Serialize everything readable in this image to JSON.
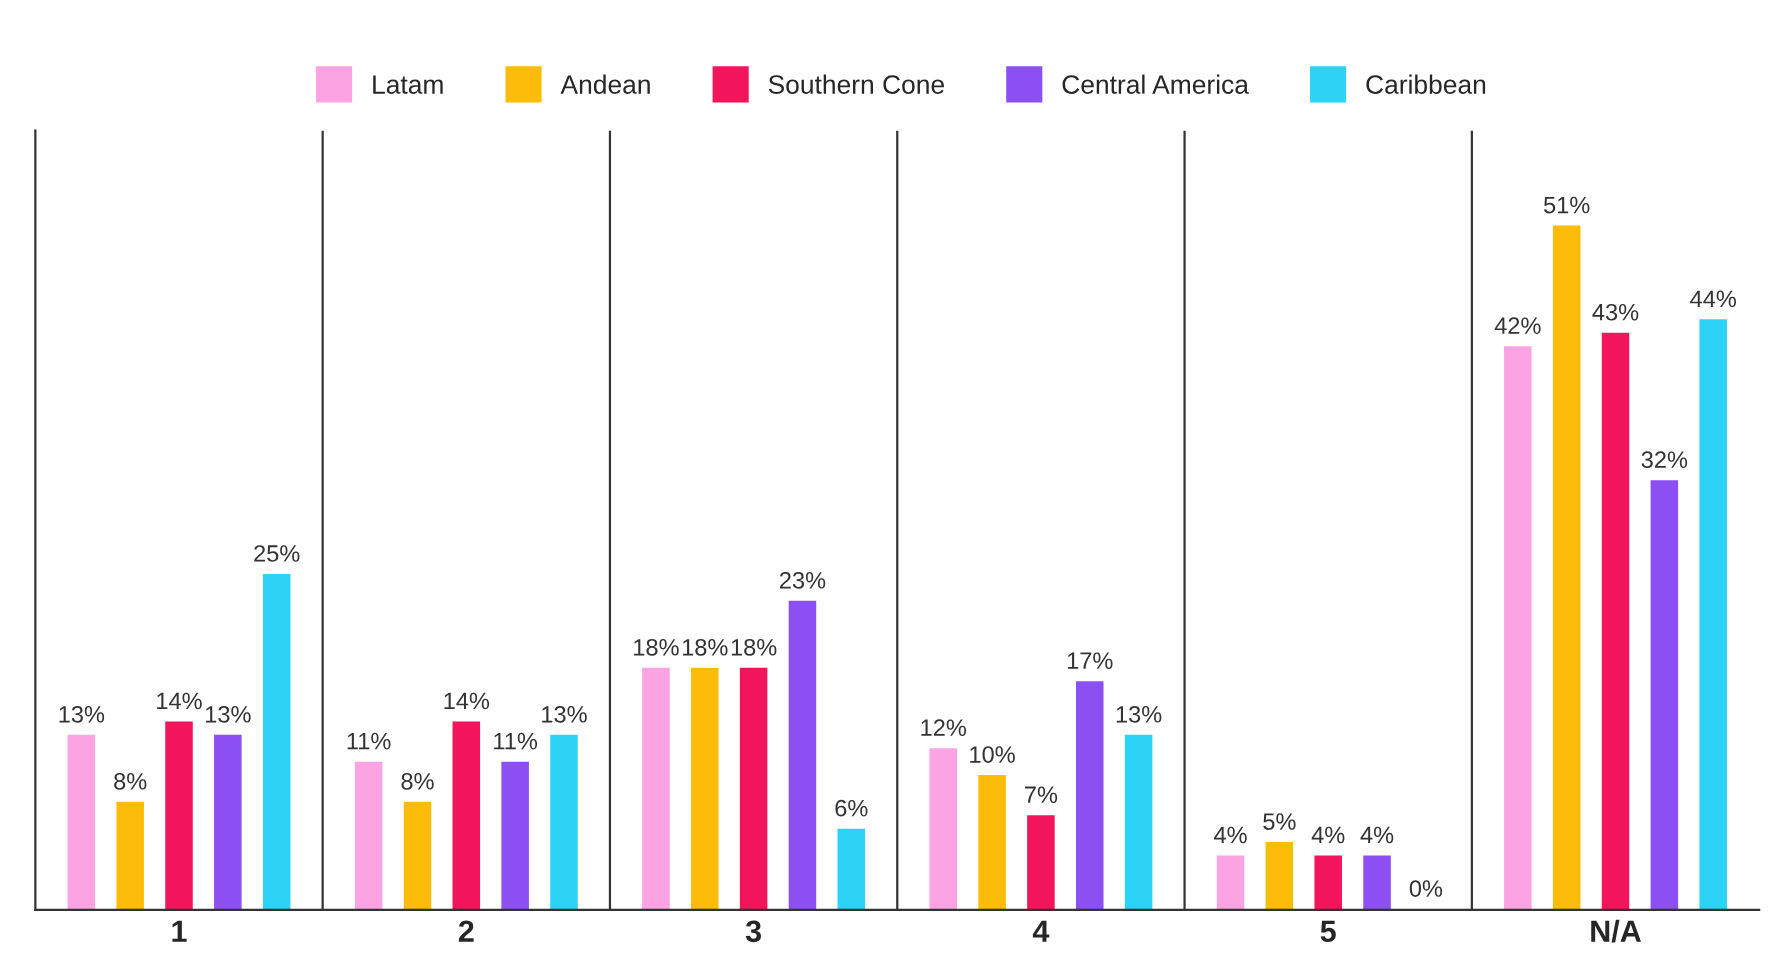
{
  "chart_data": {
    "type": "bar",
    "categories": [
      "1",
      "2",
      "3",
      "4",
      "5",
      "N/A"
    ],
    "series": [
      {
        "name": "Latam",
        "color": "#fba3e3",
        "values": [
          13,
          11,
          18,
          12,
          4,
          42
        ],
        "value_labels": [
          "13%",
          "11%",
          "18%",
          "12%",
          "4%",
          "42%"
        ]
      },
      {
        "name": "Andean",
        "color": "#fdbb0a",
        "values": [
          8,
          8,
          18,
          10,
          5,
          51
        ],
        "value_labels": [
          "8%",
          "8%",
          "18%",
          "10%",
          "5%",
          "51%"
        ]
      },
      {
        "name": "Southern Cone",
        "color": "#f2155c",
        "values": [
          14,
          14,
          18,
          7,
          4,
          43
        ],
        "value_labels": [
          "14%",
          "14%",
          "18%",
          "7%",
          "4%",
          "43%"
        ]
      },
      {
        "name": "Central America",
        "color": "#8c4ff2",
        "values": [
          13,
          11,
          23,
          17,
          4,
          32
        ],
        "value_labels": [
          "13%",
          "11%",
          "23%",
          "17%",
          "4%",
          "32%"
        ]
      },
      {
        "name": "Caribbean",
        "color": "#2dd2f7",
        "values": [
          25,
          13,
          6,
          13,
          0,
          44
        ],
        "value_labels": [
          "25%",
          "13%",
          "6%",
          "13%",
          "0%",
          "44%"
        ]
      }
    ],
    "grid": "x",
    "legend": "top",
    "tick_labels": "x"
  }
}
